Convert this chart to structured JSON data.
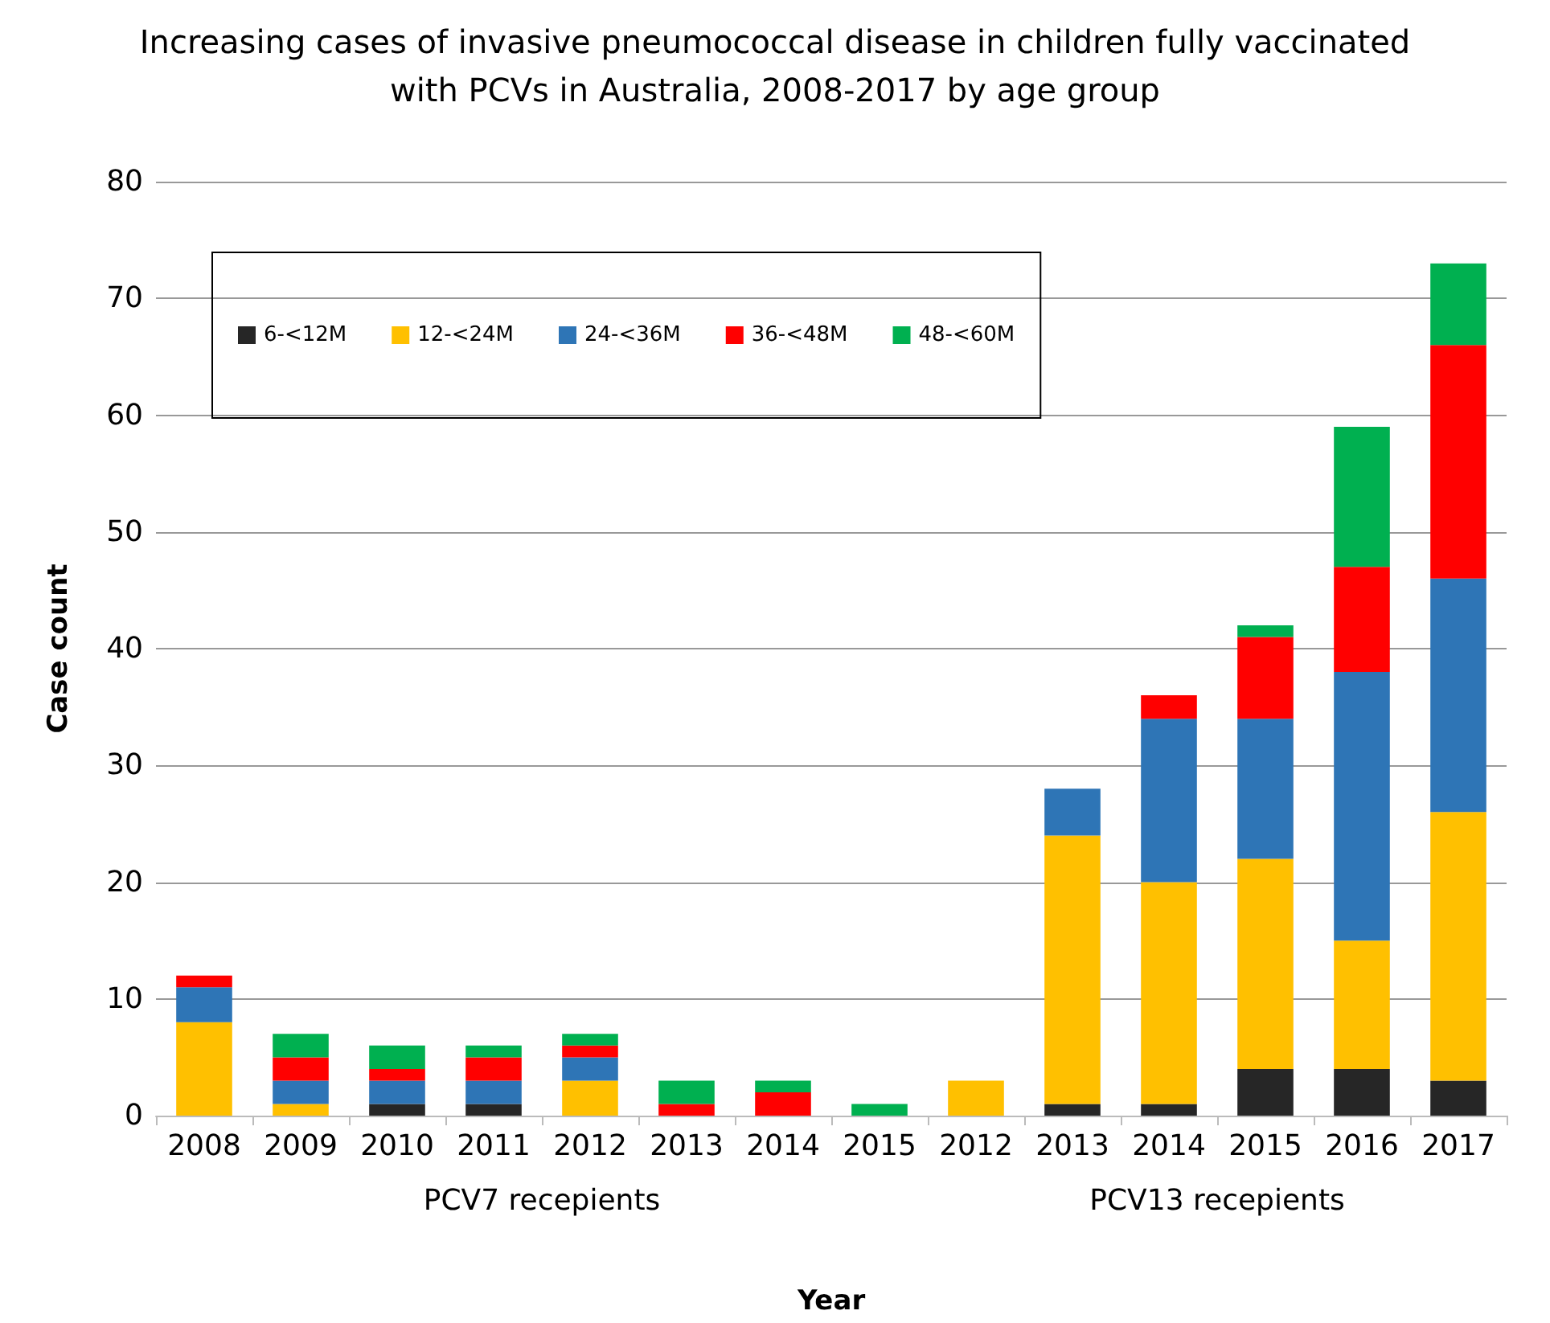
{
  "chart_data": {
    "type": "bar",
    "title": "Increasing cases of invasive pneumococcal disease in children fully vaccinated\nwith PCVs in Australia, 2008-2017 by age group",
    "xlabel": "Year",
    "ylabel": "Case count",
    "categories": [
      "2008",
      "2009",
      "2010",
      "2011",
      "2012",
      "2013",
      "2014",
      "2015",
      "2012",
      "2013",
      "2014",
      "2015",
      "2016",
      "2017"
    ],
    "stacked": true,
    "series": [
      {
        "name": "6-<12M",
        "color": "#262626",
        "values": [
          0,
          0,
          1,
          1,
          0,
          0,
          0,
          0,
          0,
          1,
          1,
          4,
          4,
          3
        ]
      },
      {
        "name": "12-<24M",
        "color": "#ffc000",
        "values": [
          8,
          1,
          0,
          0,
          3,
          0,
          0,
          0,
          3,
          23,
          19,
          18,
          11,
          23
        ]
      },
      {
        "name": "24-<36M",
        "color": "#2e75b6",
        "values": [
          3,
          2,
          2,
          2,
          2,
          0,
          0,
          0,
          0,
          4,
          14,
          12,
          23,
          20
        ]
      },
      {
        "name": "36-<48M",
        "color": "#ff0000",
        "values": [
          1,
          2,
          1,
          2,
          1,
          1,
          2,
          0,
          0,
          0,
          2,
          7,
          9,
          20
        ]
      },
      {
        "name": "48-<60M",
        "color": "#00b050",
        "values": [
          0,
          2,
          2,
          1,
          1,
          2,
          1,
          1,
          0,
          0,
          0,
          1,
          12,
          7
        ]
      }
    ],
    "ylim": [
      0,
      80
    ],
    "yticks": [
      0,
      10,
      20,
      30,
      40,
      50,
      60,
      70,
      80
    ],
    "grid": "y",
    "legend": "top left",
    "annotations": [
      "PCV7 recepients",
      "PCV13 recepients"
    ]
  }
}
